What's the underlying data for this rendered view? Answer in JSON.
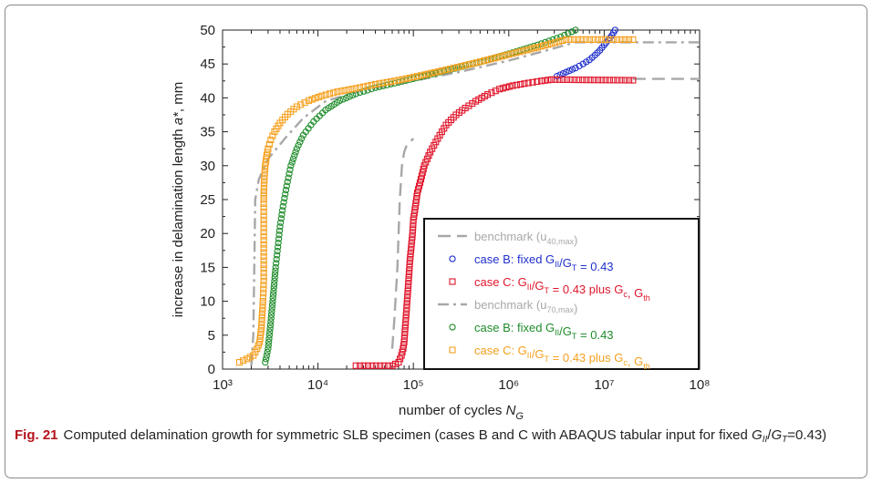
{
  "figure": {
    "number": "Fig. 21",
    "caption_text": "Computed delamination growth for symmetric SLB specimen (cases B and C with ABAQUS tabular input for fixed",
    "caption_g": "G",
    "caption_sub1": "II",
    "caption_slash": "/",
    "caption_sub2": "T",
    "caption_tail": "=0.43)"
  },
  "chart_data": {
    "type": "scatter",
    "xlabel": "number of cycles N",
    "xlabel_sub": "G",
    "ylabel": "increase in delamination length a*, mm",
    "x_scale": "log",
    "xlim": [
      1000,
      100000000
    ],
    "ylim": [
      0,
      50
    ],
    "x_ticks": [
      "10³",
      "10⁴",
      "10⁵",
      "10⁶",
      "10⁷",
      "10⁸"
    ],
    "y_ticks": [
      "0",
      "5",
      "10",
      "15",
      "20",
      "25",
      "30",
      "35",
      "40",
      "45",
      "50"
    ],
    "grid": false,
    "legend_position": "inside lower-right",
    "legend": [
      {
        "text": "benchmark (u",
        "sub": "40,max",
        "tail": ")",
        "style": "dash",
        "color": "#a8a8a8"
      },
      {
        "text": "case B: fixed G",
        "sub": "II",
        "text2": "/G",
        "sub2": "T",
        "tail": " = 0.43",
        "style": "circle",
        "color": "#1f2fcc"
      },
      {
        "text": "case C: G",
        "sub": "II",
        "text2": "/G",
        "sub2": "T",
        "tail": " = 0.43 plus G",
        "sub3": "c",
        "tail2": ", G",
        "sub4": "th",
        "style": "square",
        "color": "#e0162b"
      },
      {
        "text": "benchmark (u",
        "sub": "70,max",
        "tail": ")",
        "style": "dashdot",
        "color": "#a8a8a8"
      },
      {
        "text": "case B: fixed G",
        "sub": "II",
        "text2": "/G",
        "sub2": "T",
        "tail": " = 0.43",
        "style": "circle",
        "color": "#1e8c2a"
      },
      {
        "text": "case C: G",
        "sub": "II",
        "text2": "/G",
        "sub2": "T",
        "tail": " = 0.43 plus G",
        "sub3": "c",
        "tail2": ", G",
        "sub4": "th",
        "style": "square",
        "color": "#f5a01e"
      }
    ],
    "series": [
      {
        "name": "benchmark (u40,max)",
        "style": "dash",
        "color": "#a8a8a8",
        "x": [
          60000,
          63000,
          68000,
          72000,
          76000,
          80000,
          85000,
          100000
        ],
        "y": [
          3,
          7,
          15,
          25,
          30,
          32,
          33,
          34
        ]
      },
      {
        "name": "benchmark (u40,max) plateau",
        "style": "dash",
        "color": "#a8a8a8",
        "x": [
          20000000,
          100000000
        ],
        "y": [
          42.8,
          42.8
        ]
      },
      {
        "name": "case B: fixed GII/GT = 0.43 (u40,max)",
        "style": "circle",
        "color": "#1f2fcc",
        "x": [
          3200000,
          4000000,
          5000000,
          6000000,
          7000000,
          8000000,
          9000000,
          10000000,
          11000000,
          12000000,
          13000000
        ],
        "y": [
          43.2,
          43.8,
          44.4,
          45.0,
          45.6,
          46.3,
          47.0,
          47.8,
          48.5,
          49.2,
          50.0
        ]
      },
      {
        "name": "case C: GII/GT = 0.43 plus Gc, Gth (u40,max)",
        "style": "square",
        "color": "#e0162b",
        "x": [
          25000,
          60000,
          70000,
          75000,
          78000,
          80000,
          82000,
          84000,
          86000,
          88000,
          90000,
          92000,
          95000,
          98000,
          100000,
          105000,
          110000,
          120000,
          130000,
          150000,
          180000,
          220000,
          280000,
          350000,
          450000,
          600000,
          800000,
          1100000,
          1600000,
          2200000,
          2800000,
          20000000
        ],
        "y": [
          0.5,
          0.5,
          1,
          2,
          3,
          4,
          6,
          8,
          10,
          12,
          14,
          16,
          18,
          20,
          22,
          24,
          26,
          28,
          30,
          32,
          34,
          36,
          37.5,
          38.5,
          39.5,
          40.5,
          41.3,
          41.8,
          42.2,
          42.5,
          42.7,
          42.6
        ]
      },
      {
        "name": "benchmark (u70,max)",
        "style": "dashdot",
        "color": "#a8a8a8",
        "x": [
          2000,
          2100,
          2150,
          2200,
          2400,
          3000,
          4500,
          7000,
          12000,
          30000,
          100000,
          300000,
          1000000,
          2500000,
          5000000,
          100000000
        ],
        "y": [
          0.5,
          5,
          15,
          25,
          28,
          31,
          34,
          37,
          39.5,
          41.2,
          42.5,
          43.8,
          45.5,
          47,
          48.2,
          48.2
        ]
      },
      {
        "name": "case B: fixed GII/GT = 0.43 (u70,max)",
        "style": "circle",
        "color": "#1e8c2a",
        "x": [
          2800,
          2900,
          3000,
          3100,
          3200,
          3300,
          3400,
          3500,
          3600,
          3800,
          4000,
          4300,
          4700,
          5200,
          6000,
          7000,
          9000,
          12000,
          17000,
          25000,
          40000,
          70000,
          120000,
          250000,
          500000,
          1000000,
          2000000,
          3500000,
          5000000
        ],
        "y": [
          1,
          2,
          3,
          5,
          7,
          9,
          11,
          13,
          15,
          18,
          21,
          24,
          27,
          30,
          32.5,
          34.5,
          36.5,
          38.2,
          39.6,
          40.6,
          41.5,
          42.3,
          43.1,
          44.2,
          45.3,
          46.5,
          47.8,
          49,
          50
        ]
      },
      {
        "name": "case C: GII/GT = 0.43 plus Gc, Gth (u70,max)",
        "style": "square",
        "color": "#f5a01e",
        "x": [
          1500,
          1800,
          2100,
          2300,
          2450,
          2550,
          2600,
          2650,
          2700,
          2700,
          2700,
          2700,
          2700,
          2720,
          2750,
          2800,
          2900,
          3000,
          3200,
          3500,
          4000,
          4800,
          6000,
          8000,
          11000,
          16000,
          25000,
          40000,
          70000,
          120000,
          200000,
          350000,
          600000,
          1000000,
          1700000,
          2800000,
          4000000,
          20000000
        ],
        "y": [
          1,
          1.5,
          2,
          3,
          4,
          6,
          8,
          10,
          13,
          16,
          19,
          22,
          25,
          27,
          28.5,
          30,
          31.5,
          32.5,
          33.8,
          35,
          36.3,
          37.6,
          38.7,
          39.6,
          40.3,
          40.9,
          41.4,
          42,
          42.6,
          43.3,
          44,
          44.8,
          45.6,
          46.4,
          47.2,
          48,
          48.6,
          48.6
        ]
      }
    ]
  }
}
